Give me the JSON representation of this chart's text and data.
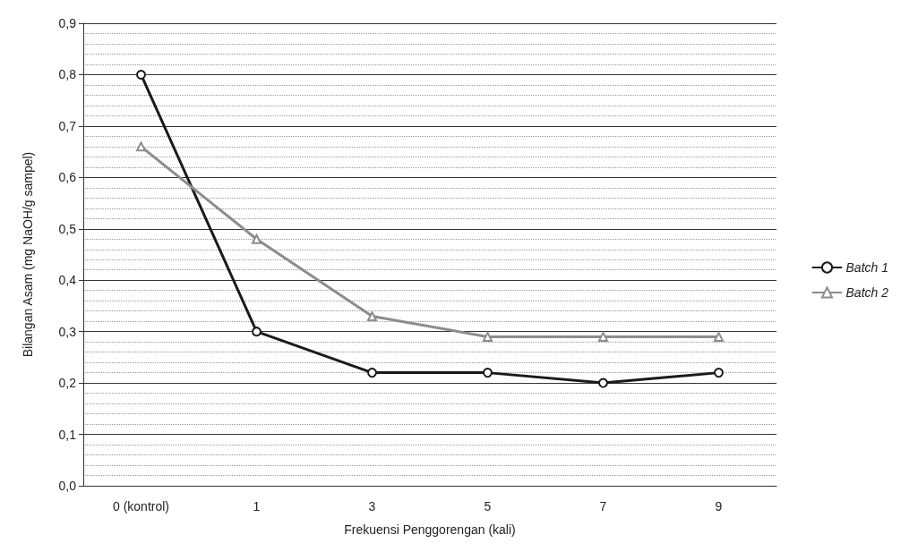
{
  "chart_data": {
    "type": "line",
    "xlabel": "Frekuensi Penggorengan (kali)",
    "ylabel": "Bilangan Asam (mg NaOH/g sampel)",
    "categories": [
      "0 (kontrol)",
      "1",
      "3",
      "5",
      "7",
      "9"
    ],
    "series": [
      {
        "name": "Batch 1",
        "color": "#1a1a1a",
        "marker": "circle",
        "values": [
          0.8,
          0.3,
          0.22,
          0.22,
          0.2,
          0.22
        ]
      },
      {
        "name": "Batch 2",
        "color": "#8c8c8c",
        "marker": "triangle",
        "values": [
          0.66,
          0.48,
          0.33,
          0.29,
          0.29,
          0.29
        ]
      }
    ],
    "ylim": [
      0,
      0.9
    ],
    "yticks": [
      {
        "value": 0,
        "label": "0,0"
      },
      {
        "value": 0.1,
        "label": "0,1"
      },
      {
        "value": 0.2,
        "label": "0,2"
      },
      {
        "value": 0.3,
        "label": "0,3"
      },
      {
        "value": 0.4,
        "label": "0,4"
      },
      {
        "value": 0.5,
        "label": "0,5"
      },
      {
        "value": 0.6,
        "label": "0,6"
      },
      {
        "value": 0.7,
        "label": "0,7"
      },
      {
        "value": 0.8,
        "label": "0,8"
      },
      {
        "value": 0.9,
        "label": "0,9"
      }
    ],
    "grid": "y",
    "legend": "right"
  }
}
